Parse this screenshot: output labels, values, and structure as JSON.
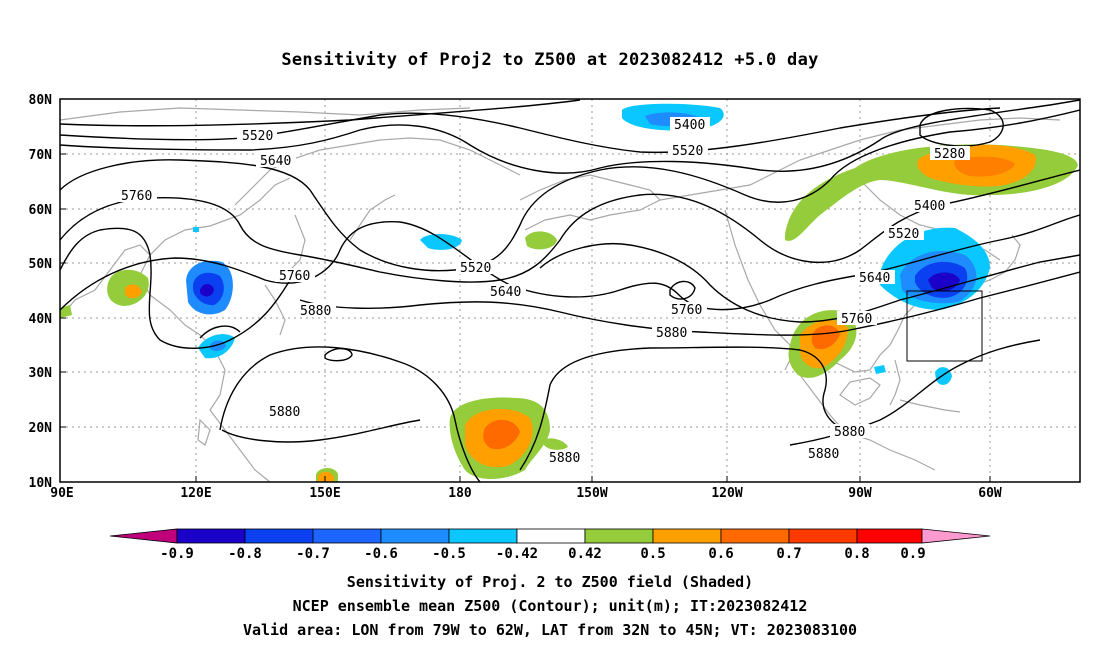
{
  "title": "Sensitivity of Proj2 to Z500 at 2023082412 +5.0 day",
  "map": {
    "lat_ticks": [
      "80N",
      "70N",
      "60N",
      "50N",
      "40N",
      "30N",
      "20N",
      "10N"
    ],
    "lon_ticks": [
      "90E",
      "120E",
      "150E",
      "180",
      "150W",
      "120W",
      "90W",
      "60W"
    ],
    "contour_labels": [
      "5520",
      "5640",
      "5760",
      "5760",
      "5880",
      "5880",
      "5400",
      "5520",
      "5520",
      "5640",
      "5760",
      "5880",
      "5280",
      "5400",
      "5520",
      "5640",
      "5760",
      "5880",
      "5880",
      "5880"
    ],
    "valid_area": {
      "lon": [
        "79W",
        "62W"
      ],
      "lat": [
        "32N",
        "45N"
      ]
    }
  },
  "colorbar": {
    "labels": [
      "-0.9",
      "-0.8",
      "-0.7",
      "-0.6",
      "-0.5",
      "-0.42",
      "0.42",
      "0.5",
      "0.6",
      "0.7",
      "0.8",
      "0.9"
    ],
    "colors": [
      "#c0007a",
      "#1a00c8",
      "#0a40f0",
      "#1e64ff",
      "#1e8cff",
      "#0ac8ff",
      "#ffffff",
      "#94cc3c",
      "#ffa000",
      "#ff6a00",
      "#ff3a00",
      "#ff0000",
      "#ff9ad0"
    ]
  },
  "captions": {
    "line1": "Sensitivity of Proj. 2 to Z500 field (Shaded)",
    "line2": "NCEP ensemble mean Z500 (Contour); unit(m); IT:2023082412",
    "line3": "Valid area: LON from 79W to 62W, LAT from 32N to 45N; VT: 2023083100"
  }
}
